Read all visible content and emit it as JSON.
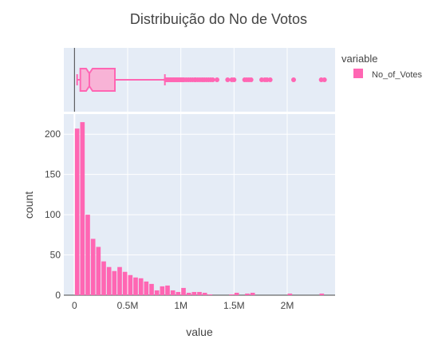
{
  "chart_data": {
    "type": "histogram",
    "title": "Distribuição do No de Votos",
    "xlabel": "value",
    "ylabel": "count",
    "xlim": [
      -100000,
      2450000
    ],
    "ylim": [
      0,
      225
    ],
    "x_ticks": [
      0,
      500000,
      1000000,
      1500000,
      2000000
    ],
    "x_tick_labels": [
      "0",
      "0.5M",
      "1M",
      "1.5M",
      "2M"
    ],
    "y_ticks": [
      0,
      50,
      100,
      150,
      200
    ],
    "y_tick_labels": [
      "0",
      "50",
      "100",
      "150",
      "200"
    ],
    "legend": {
      "title": "variable",
      "entries": [
        "No_of_Votes"
      ],
      "placement": "top-right"
    },
    "series": [
      {
        "name": "No_of_Votes",
        "color": "#ff66b3",
        "bin_width": 50000,
        "bin_starts": [
          0,
          50000,
          100000,
          150000,
          200000,
          250000,
          300000,
          350000,
          400000,
          450000,
          500000,
          550000,
          600000,
          650000,
          700000,
          750000,
          800000,
          850000,
          900000,
          950000,
          1000000,
          1050000,
          1100000,
          1150000,
          1200000,
          1250000,
          1300000,
          1350000,
          1400000,
          1450000,
          1500000,
          1550000,
          1600000,
          1650000,
          1700000,
          1750000,
          1800000,
          1850000,
          1900000,
          1950000,
          2000000,
          2050000,
          2100000,
          2150000,
          2200000,
          2250000,
          2300000
        ],
        "counts": [
          207,
          215,
          100,
          70,
          60,
          42,
          35,
          30,
          35,
          29,
          25,
          22,
          21,
          17,
          14,
          6,
          11,
          12,
          6,
          4,
          9,
          3,
          4,
          4,
          3,
          1,
          0,
          0,
          0,
          1,
          3,
          0,
          2,
          3,
          0,
          0,
          0,
          0,
          0,
          0,
          2,
          0,
          0,
          0,
          0,
          0,
          2
        ]
      }
    ],
    "boxplot": {
      "name": "No_of_Votes",
      "color": "#ff66b3",
      "min": 25000,
      "q1": 55000,
      "median": 140000,
      "q3": 380000,
      "upper_fence": 850000,
      "notch_low": 110000,
      "notch_high": 170000,
      "outliers": [
        860000,
        870000,
        880000,
        890000,
        900000,
        910000,
        920000,
        930000,
        940000,
        950000,
        960000,
        970000,
        980000,
        990000,
        1000000,
        1010000,
        1020000,
        1030000,
        1050000,
        1070000,
        1090000,
        1110000,
        1130000,
        1140000,
        1160000,
        1180000,
        1200000,
        1220000,
        1240000,
        1260000,
        1280000,
        1300000,
        1340000,
        1440000,
        1480000,
        1500000,
        1600000,
        1620000,
        1640000,
        1660000,
        1760000,
        1790000,
        1810000,
        1840000,
        2060000,
        2320000,
        2350000
      ]
    }
  }
}
